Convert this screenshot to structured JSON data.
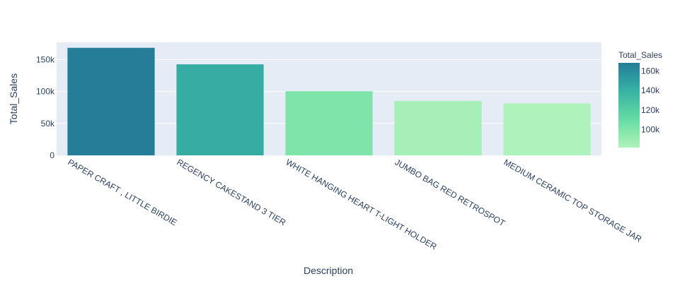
{
  "chart_data": {
    "type": "bar",
    "xlabel": "Description",
    "ylabel": "Total_Sales",
    "categories": [
      "PAPER CRAFT , LITTLE BIRDIE",
      "REGENCY CAKESTAND 3 TIER",
      "WHITE HANGING HEART T-LIGHT HOLDER",
      "JUMBO BAG RED RETROSPOT",
      "MEDIUM CERAMIC TOP STORAGE JAR"
    ],
    "values": [
      168470,
      142593,
      100448,
      85220,
      81416
    ],
    "ylim": [
      0,
      177000
    ],
    "yticks": [
      0,
      50000,
      100000,
      150000
    ],
    "ytick_labels": [
      "0",
      "50k",
      "100k",
      "150k"
    ],
    "grid": true,
    "colorbar": {
      "title": "Total_Sales",
      "range": [
        81416,
        168470
      ],
      "ticks": [
        100000,
        120000,
        140000,
        160000
      ],
      "tick_labels": [
        "100k",
        "120k",
        "140k",
        "160k"
      ],
      "colorscale": [
        [
          0.0,
          "#b0f2bc"
        ],
        [
          0.17,
          "#89e8ac"
        ],
        [
          0.33,
          "#67dba5"
        ],
        [
          0.5,
          "#4cc8a3"
        ],
        [
          0.67,
          "#38b2a3"
        ],
        [
          0.83,
          "#2c98a0"
        ],
        [
          1.0,
          "#257d98"
        ]
      ]
    },
    "colors": {
      "plot_bg": "#e5ecf6",
      "grid": "#ffffff",
      "text": "#2a3f5f"
    }
  }
}
